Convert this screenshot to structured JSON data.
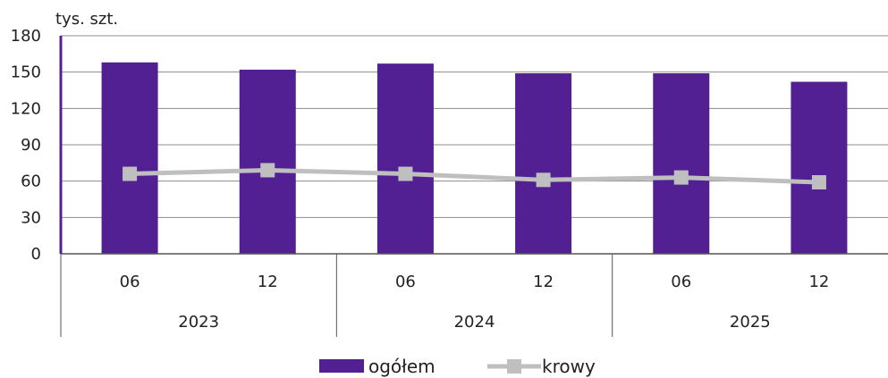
{
  "chart_data": {
    "type": "bar",
    "unit_label": "tys. szt.",
    "categories": [
      "06",
      "12",
      "06",
      "12",
      "06",
      "12"
    ],
    "groups": [
      {
        "label": "2023",
        "span": 2
      },
      {
        "label": "2024",
        "span": 2
      },
      {
        "label": "2025",
        "span": 2
      }
    ],
    "series": [
      {
        "name": "ogółem",
        "kind": "bar",
        "color": "#522092",
        "values": [
          158,
          152,
          157,
          149,
          149,
          142
        ]
      },
      {
        "name": "krowy",
        "kind": "line",
        "color": "#bfbfbf",
        "values": [
          66,
          69,
          66,
          61,
          63,
          59
        ]
      }
    ],
    "ylim": [
      0,
      180
    ],
    "yticks": [
      "0",
      "30",
      "60",
      "90",
      "120",
      "150",
      "180"
    ],
    "grid": true,
    "legend_position": "bottom"
  }
}
